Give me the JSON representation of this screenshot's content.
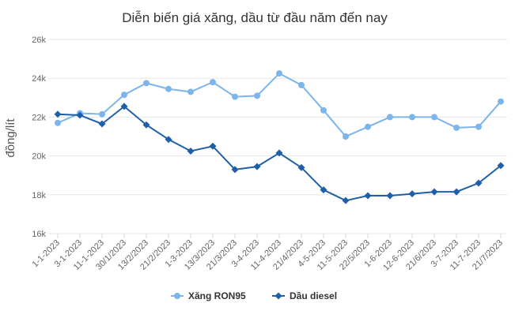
{
  "chart_data": {
    "type": "line",
    "title": "Diễn biến giá xăng, dầu từ đầu năm đến nay",
    "xlabel": "",
    "ylabel": "đồng/lít",
    "categories": [
      "1-1-2023",
      "3-1-2023",
      "11-1-2023",
      "30/1/2023",
      "13/2/2023",
      "21/2/2023",
      "1-3-2023",
      "13/3/2023",
      "21/3/2023",
      "3-4-2023",
      "11-4-2023",
      "21/4/2023",
      "4-5-2023",
      "11-5-2023",
      "22/5/2023",
      "1-6-2023",
      "12-6-2023",
      "21/6/2023",
      "3-7-2023",
      "11-7-2023",
      "21/7/2023"
    ],
    "ylim": [
      16000,
      26000
    ],
    "yticks": [
      {
        "value": 16000,
        "label": "16k"
      },
      {
        "value": 18000,
        "label": "18k"
      },
      {
        "value": 20000,
        "label": "20k"
      },
      {
        "value": 22000,
        "label": "22k"
      },
      {
        "value": 24000,
        "label": "24k"
      },
      {
        "value": 26000,
        "label": "26k"
      }
    ],
    "grid": true,
    "legend_position": "bottom",
    "series": [
      {
        "name": "Xăng RON95",
        "color": "#7cb5ec",
        "marker": "circle",
        "values": [
          21700,
          22200,
          22150,
          23150,
          23750,
          23450,
          23300,
          23800,
          23050,
          23100,
          24250,
          23650,
          22350,
          21000,
          21500,
          22000,
          22000,
          22000,
          21450,
          21500,
          22800
        ]
      },
      {
        "name": "Dầu diesel",
        "color": "#1f5fa8",
        "marker": "diamond",
        "values": [
          22150,
          22100,
          21650,
          22550,
          21600,
          20850,
          20250,
          20500,
          19300,
          19450,
          20150,
          19400,
          18250,
          17700,
          17950,
          17950,
          18050,
          18150,
          18150,
          18600,
          19500
        ]
      }
    ]
  }
}
